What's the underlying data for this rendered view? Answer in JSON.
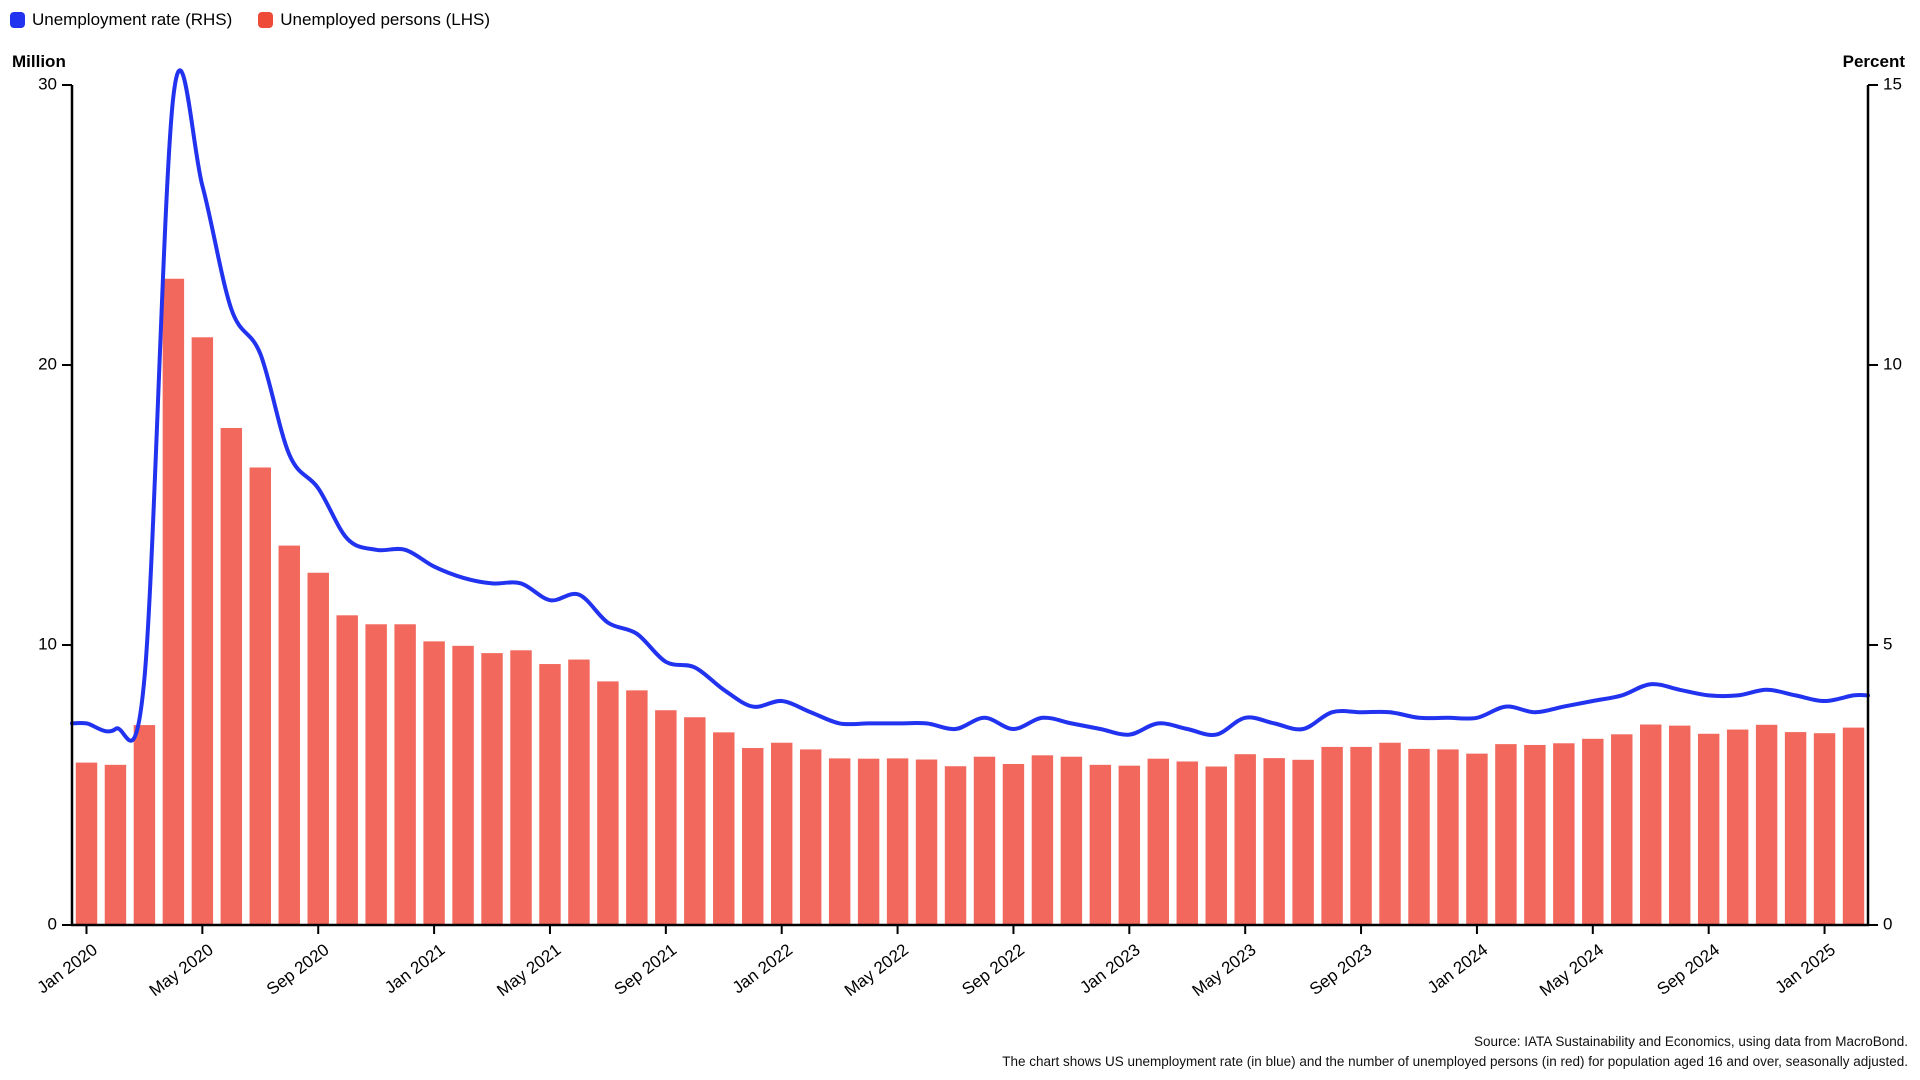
{
  "legend": [
    {
      "label": "Unemployment rate (RHS)",
      "color": "#2233f0"
    },
    {
      "label": "Unemployed persons (LHS)",
      "color": "#ef4b39"
    }
  ],
  "left_axis": {
    "title": "Million",
    "ticks": [
      0,
      10,
      20,
      30
    ]
  },
  "right_axis": {
    "title": "Percent",
    "ticks": [
      0,
      5,
      10,
      15
    ]
  },
  "footer": {
    "line1": "Source: IATA Sustainability and Economics, using data from MacroBond.",
    "line2": "The chart shows US unemployment rate (in blue) and the number of unemployed persons (in red) for population aged 16 and over, seasonally adjusted."
  },
  "chart_data": {
    "type": "bar+line",
    "categories": [
      "Jan 2020",
      "Feb 2020",
      "Mar 2020",
      "Apr 2020",
      "May 2020",
      "Jun 2020",
      "Jul 2020",
      "Aug 2020",
      "Sep 2020",
      "Oct 2020",
      "Nov 2020",
      "Dec 2020",
      "Jan 2021",
      "Feb 2021",
      "Mar 2021",
      "Apr 2021",
      "May 2021",
      "Jun 2021",
      "Jul 2021",
      "Aug 2021",
      "Sep 2021",
      "Oct 2021",
      "Nov 2021",
      "Dec 2021",
      "Jan 2022",
      "Feb 2022",
      "Mar 2022",
      "Apr 2022",
      "May 2022",
      "Jun 2022",
      "Jul 2022",
      "Aug 2022",
      "Sep 2022",
      "Oct 2022",
      "Nov 2022",
      "Dec 2022",
      "Jan 2023",
      "Feb 2023",
      "Mar 2023",
      "Apr 2023",
      "May 2023",
      "Jun 2023",
      "Jul 2023",
      "Aug 2023",
      "Sep 2023",
      "Oct 2023",
      "Nov 2023",
      "Dec 2023",
      "Jan 2024",
      "Feb 2024",
      "Mar 2024",
      "Apr 2024",
      "May 2024",
      "Jun 2024",
      "Jul 2024",
      "Aug 2024",
      "Sep 2024",
      "Oct 2024",
      "Nov 2024",
      "Dec 2024",
      "Jan 2025",
      "Feb 2025"
    ],
    "x_tick_labels": [
      "Jan 2020",
      "May 2020",
      "Sep 2020",
      "Jan 2021",
      "May 2021",
      "Sep 2021",
      "Jan 2022",
      "May 2022",
      "Sep 2022",
      "Jan 2023",
      "May 2023",
      "Sep 2023",
      "Jan 2024",
      "May 2024",
      "Sep 2024",
      "Jan 2025"
    ],
    "x_tick_every": 4,
    "series": [
      {
        "name": "Unemployed persons (LHS)",
        "type": "bar",
        "axis": "left",
        "color": "#f2685c",
        "unit": "Million",
        "values": [
          5.8,
          5.72,
          7.14,
          23.08,
          20.99,
          17.75,
          16.34,
          13.55,
          12.58,
          11.06,
          10.74,
          10.74,
          10.13,
          9.97,
          9.71,
          9.81,
          9.32,
          9.48,
          8.7,
          8.38,
          7.67,
          7.42,
          6.88,
          6.32,
          6.51,
          6.27,
          5.95,
          5.94,
          5.95,
          5.91,
          5.67,
          6.01,
          5.75,
          6.06,
          6.01,
          5.72,
          5.69,
          5.94,
          5.84,
          5.66,
          6.1,
          5.96,
          5.9,
          6.36,
          6.36,
          6.51,
          6.29,
          6.27,
          6.12,
          6.46,
          6.43,
          6.49,
          6.65,
          6.81,
          7.16,
          7.12,
          6.83,
          6.98,
          7.15,
          6.89,
          6.85,
          7.05
        ]
      },
      {
        "name": "Unemployment rate (RHS)",
        "type": "line",
        "axis": "right",
        "color": "#2233f0",
        "unit": "Percent",
        "values": [
          3.6,
          3.5,
          4.4,
          14.8,
          13.2,
          11.0,
          10.2,
          8.4,
          7.8,
          6.9,
          6.7,
          6.7,
          6.4,
          6.2,
          6.1,
          6.1,
          5.8,
          5.9,
          5.4,
          5.2,
          4.7,
          4.6,
          4.2,
          3.9,
          4.0,
          3.8,
          3.6,
          3.6,
          3.6,
          3.6,
          3.5,
          3.7,
          3.5,
          3.7,
          3.6,
          3.5,
          3.4,
          3.6,
          3.5,
          3.4,
          3.7,
          3.6,
          3.5,
          3.8,
          3.8,
          3.8,
          3.7,
          3.7,
          3.7,
          3.9,
          3.8,
          3.9,
          4.0,
          4.1,
          4.3,
          4.2,
          4.1,
          4.1,
          4.2,
          4.1,
          4.0,
          4.1
        ]
      }
    ],
    "left_ylim": [
      0,
      30
    ],
    "right_ylim": [
      0,
      15
    ],
    "grid": false,
    "legend_position": "top-left",
    "axis_color": "#000000"
  }
}
